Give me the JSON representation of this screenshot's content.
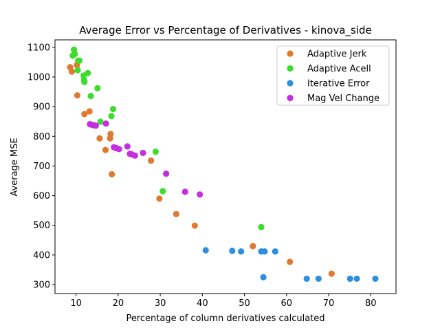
{
  "chart_data": {
    "type": "scatter",
    "title": "Average Error vs Percentage of Derivatives - kinova_side",
    "xlabel": "Percentage of column derivatives calculated",
    "ylabel": "Average MSE",
    "xlim": [
      5,
      86
    ],
    "ylim": [
      270,
      1125
    ],
    "xticks": [
      10,
      20,
      30,
      40,
      50,
      60,
      70,
      80
    ],
    "yticks": [
      300,
      400,
      500,
      600,
      700,
      800,
      900,
      1000,
      1100
    ],
    "legend_position": "top-right",
    "grid": false,
    "series": [
      {
        "name": "Adaptive Jerk",
        "color": "#e07a2e",
        "points": [
          [
            8.6,
            1033
          ],
          [
            9.0,
            1018
          ],
          [
            10.2,
            1040
          ],
          [
            10.3,
            938
          ],
          [
            12.0,
            875
          ],
          [
            13.2,
            884
          ],
          [
            15.6,
            793
          ],
          [
            17.0,
            754
          ],
          [
            18.1,
            793
          ],
          [
            18.2,
            808
          ],
          [
            18.5,
            672
          ],
          [
            27.8,
            718
          ],
          [
            29.8,
            590
          ],
          [
            33.8,
            538
          ],
          [
            38.2,
            499
          ],
          [
            52.0,
            430
          ],
          [
            60.8,
            377
          ],
          [
            70.7,
            337
          ]
        ]
      },
      {
        "name": "Adaptive Acell",
        "color": "#3ddc2e",
        "points": [
          [
            9.2,
            1072
          ],
          [
            9.5,
            1092
          ],
          [
            9.7,
            1077
          ],
          [
            10.4,
            1023
          ],
          [
            10.5,
            1055
          ],
          [
            10.8,
            1055
          ],
          [
            11.8,
            1005
          ],
          [
            11.9,
            990
          ],
          [
            12.0,
            983
          ],
          [
            12.8,
            1013
          ],
          [
            13.5,
            936
          ],
          [
            15.1,
            962
          ],
          [
            15.8,
            849
          ],
          [
            18.4,
            868
          ],
          [
            18.8,
            892
          ],
          [
            28.9,
            748
          ],
          [
            30.6,
            615
          ],
          [
            54.0,
            494
          ]
        ]
      },
      {
        "name": "Iterative Error",
        "color": "#2e8fe0",
        "points": [
          [
            40.8,
            416
          ],
          [
            47.1,
            414
          ],
          [
            49.2,
            412
          ],
          [
            54.0,
            412
          ],
          [
            54.5,
            325
          ],
          [
            54.8,
            412
          ],
          [
            57.3,
            412
          ],
          [
            64.8,
            320
          ],
          [
            67.6,
            320
          ],
          [
            75.1,
            320
          ],
          [
            76.7,
            320
          ],
          [
            81.1,
            320
          ]
        ]
      },
      {
        "name": "Mag Vel Change",
        "color": "#c42ee0",
        "points": [
          [
            13.3,
            841
          ],
          [
            13.7,
            839
          ],
          [
            14.2,
            837
          ],
          [
            14.7,
            836
          ],
          [
            17.1,
            843
          ],
          [
            19.0,
            763
          ],
          [
            19.6,
            760
          ],
          [
            20.2,
            757
          ],
          [
            22.2,
            766
          ],
          [
            22.8,
            741
          ],
          [
            23.3,
            739
          ],
          [
            24.0,
            735
          ],
          [
            25.9,
            744
          ],
          [
            31.4,
            674
          ],
          [
            35.9,
            613
          ],
          [
            39.4,
            604
          ]
        ]
      }
    ]
  }
}
